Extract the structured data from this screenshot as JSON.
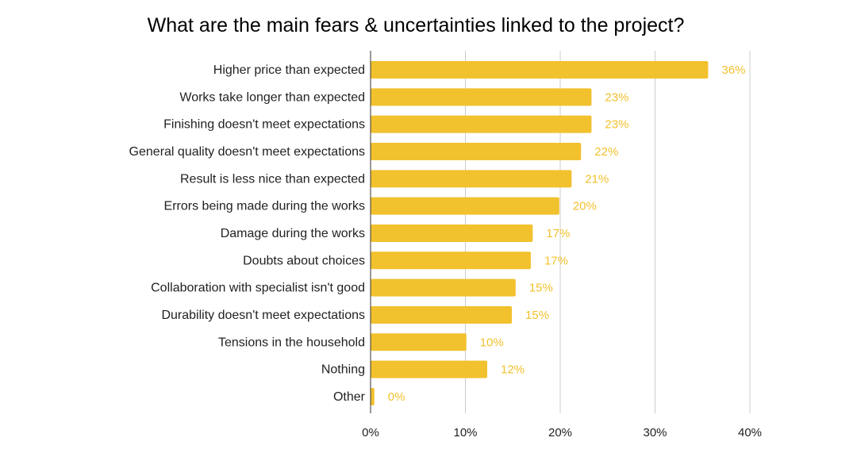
{
  "chart_data": {
    "type": "bar",
    "orientation": "horizontal",
    "title": "What are the main fears & uncertainties linked to the project?",
    "categories": [
      "Higher price than expected",
      "Works take longer than expected",
      "Finishing doesn't meet expectations",
      "General quality doesn't meet expectations",
      "Result is less nice than expected",
      "Errors being made during the works",
      "Damage during the works",
      "Doubts about choices",
      "Collaboration with specialist isn't good",
      "Durability doesn't meet expectations",
      "Tensions in the household",
      "Nothing",
      "Other"
    ],
    "values": [
      35.6,
      23.3,
      23.3,
      22.2,
      21.2,
      19.9,
      17.1,
      16.9,
      15.3,
      14.9,
      10.1,
      12.3,
      0.4
    ],
    "data_labels": [
      "36%",
      "23%",
      "23%",
      "22%",
      "21%",
      "20%",
      "17%",
      "17%",
      "15%",
      "15%",
      "10%",
      "12%",
      "0%"
    ],
    "xlim": [
      0,
      40
    ],
    "x_ticks": [
      0,
      10,
      20,
      30,
      40
    ],
    "x_tick_labels": [
      "0%",
      "10%",
      "20%",
      "30%",
      "40%"
    ],
    "grid": "vertical",
    "legend": "none",
    "colors": {
      "bar": "#f2c12e",
      "data_label": "#f2c12e",
      "grid": "#cccccc",
      "axis": "#333333"
    }
  }
}
